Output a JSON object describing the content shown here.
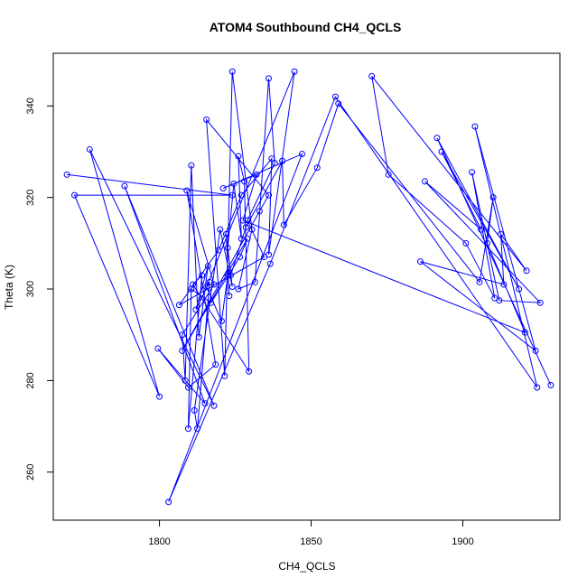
{
  "chart_data": {
    "type": "line",
    "title": "ATOM4 Southbound CH4_QCLS",
    "xlabel": "CH4_QCLS",
    "ylabel": "Theta (K)",
    "xlim": [
      1765,
      1932
    ],
    "ylim": [
      249.5,
      351.5
    ],
    "xticks": [
      1800,
      1850,
      1900
    ],
    "yticks": [
      260,
      280,
      300,
      320,
      340
    ],
    "grid": false,
    "legend": "none",
    "color": "#0000ff",
    "marker": "open-circle",
    "series": [
      {
        "x": [
          1769.5,
          1824,
          1772,
          1800,
          1777,
          1818,
          1788.5,
          1815,
          1799.5,
          1809.5,
          1818.5,
          1809,
          1818,
          1807.5,
          1808.5,
          1810.5,
          1813,
          1816,
          1812,
          1816.5,
          1812.5,
          1811.5,
          1820,
          1824,
          1822.5,
          1824.5,
          1827,
          1826,
          1828,
          1829.5,
          1811,
          1814,
          1809.5,
          1810.5,
          1817,
          1826.5,
          1829,
          1807.5,
          1833,
          1836,
          1815.5,
          1821.5,
          1824,
          1830.5,
          1826,
          1831.5,
          1836,
          1838,
          1829,
          1834.5,
          1806.5,
          1819.5,
          1827,
          1837,
          1836,
          1844.5,
          1815.5,
          1820.5,
          1822.5,
          1823,
          1822,
          1823.5,
          1828.5,
          1840.5,
          1841,
          1852,
          1859,
          1905.5,
          1910,
          1908,
          1920.5,
          1827.5,
          1832,
          1821,
          1847,
          1803,
          1836.5,
          1858,
          1924.5,
          1904,
          1924,
          1886,
          1913.5,
          1912.5,
          1921,
          1870,
          1875.5,
          1901,
          1910.5,
          1903,
          1912,
          1925.5,
          1887.5,
          1906,
          1893,
          1918.5,
          1891.5,
          1929
        ],
        "y": [
          325,
          320.5,
          320.5,
          276.5,
          330.5,
          274.5,
          322.5,
          275,
          287,
          278.5,
          283.5,
          321.5,
          301,
          290,
          280,
          327,
          289.5,
          305,
          295.5,
          301.5,
          269.5,
          273.5,
          313,
          300.5,
          309,
          323,
          311,
          329,
          323.5,
          282,
          301,
          303,
          269.5,
          300,
          297,
          307,
          311,
          286.5,
          317,
          320.5,
          337,
          281,
          347.5,
          313,
          300,
          301.5,
          346,
          327.5,
          315,
          307,
          296.5,
          308.5,
          320.5,
          328.5,
          307.5,
          347.5,
          300.5,
          293,
          303,
          298.5,
          312,
          303,
          313.5,
          328,
          314,
          326.5,
          340.5,
          301.5,
          320,
          310,
          290.5,
          315,
          325,
          322,
          329.5,
          253.5,
          305.5,
          342,
          278.5,
          335.5,
          286.5,
          306,
          301,
          312,
          304,
          346.5,
          325,
          310,
          298,
          325.5,
          297.5,
          297,
          323.5,
          313,
          330,
          300,
          333,
          279
        ]
      }
    ]
  }
}
